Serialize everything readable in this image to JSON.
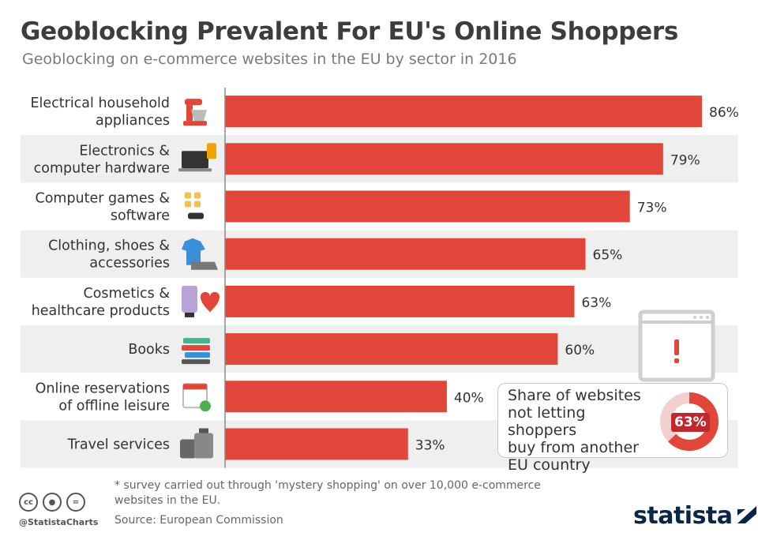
{
  "title": "Geoblocking Prevalent For EU's Online Shoppers",
  "subtitle": "Geoblocking on e-commerce websites in the EU by sector in 2016",
  "chart_data": {
    "type": "bar",
    "orientation": "horizontal",
    "categories": [
      [
        "Electrical household",
        "appliances"
      ],
      [
        "Electronics &",
        "computer hardware"
      ],
      [
        "Computer games &",
        "software"
      ],
      [
        "Clothing, shoes &",
        "accessories"
      ],
      [
        "Cosmetics &",
        "healthcare products"
      ],
      [
        "Books"
      ],
      [
        "Online reservations",
        "of offline leisure"
      ],
      [
        "Travel services"
      ]
    ],
    "values": [
      86,
      79,
      73,
      65,
      63,
      60,
      40,
      33
    ],
    "value_labels": [
      "86%",
      "79%",
      "73%",
      "65%",
      "63%",
      "60%",
      "40%",
      "33%"
    ],
    "xlim": [
      0,
      100
    ],
    "bar_color": "#e0473a",
    "icons": [
      "mixer-icon",
      "laptop-icon",
      "game-icon",
      "clothing-icon",
      "cosmetics-icon",
      "books-icon",
      "calendar-icon",
      "luggage-icon"
    ]
  },
  "callout": {
    "lines": [
      "Share of websites",
      "not letting shoppers",
      "buy from another",
      "EU country"
    ],
    "value": 63,
    "label": "63%",
    "color": "#e0473a"
  },
  "footnote": "* survey carried out through 'mystery shopping' on over 10,000 e-commerce websites in the EU.",
  "source": "Source: European Commission",
  "handle": "@StatistaCharts",
  "logo": "statista",
  "colors": {
    "stripe": "#efefef",
    "axis": "#8a8a8a",
    "accent": "#e0473a"
  }
}
